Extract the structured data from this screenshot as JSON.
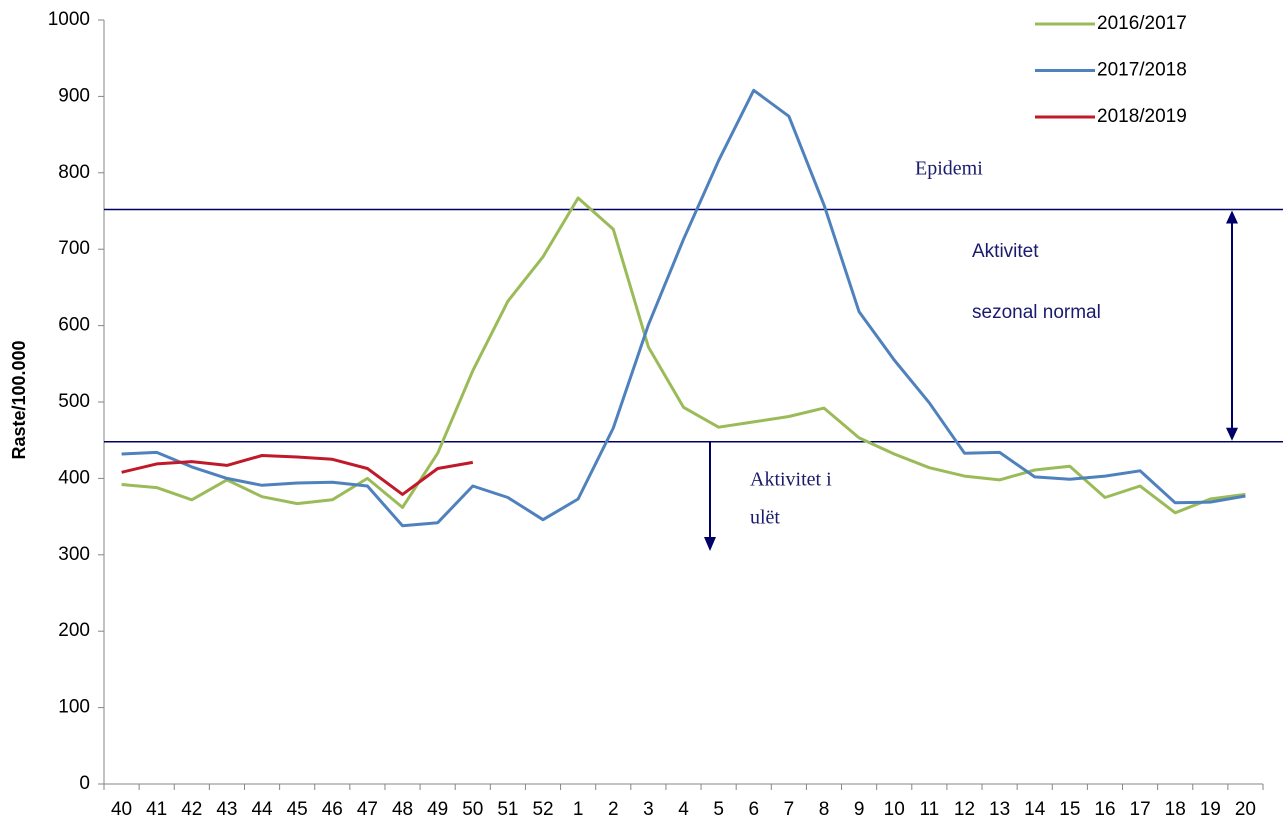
{
  "chart_data": {
    "type": "line",
    "y_label": "Raste/100.000",
    "categories": [
      "40",
      "41",
      "42",
      "43",
      "44",
      "45",
      "46",
      "47",
      "48",
      "49",
      "50",
      "51",
      "52",
      "1",
      "2",
      "3",
      "4",
      "5",
      "6",
      "7",
      "8",
      "9",
      "10",
      "11",
      "12",
      "13",
      "14",
      "15",
      "16",
      "17",
      "18",
      "19",
      "20"
    ],
    "series": [
      {
        "name": "2016/2017",
        "color": "#9bbb59",
        "values": [
          392,
          388,
          372,
          398,
          376,
          367,
          372,
          400,
          362,
          433,
          541,
          632,
          690,
          767,
          726,
          572,
          493,
          467,
          474,
          481,
          492,
          453,
          432,
          414,
          403,
          398,
          411,
          416,
          375,
          390,
          355,
          373,
          379
        ]
      },
      {
        "name": "2017/2018",
        "color": "#4f81bd",
        "values": [
          432,
          434,
          415,
          400,
          391,
          394,
          395,
          390,
          338,
          342,
          390,
          375,
          346,
          373,
          466,
          601,
          713,
          816,
          908,
          874,
          758,
          618,
          555,
          499,
          433,
          434,
          402,
          399,
          403,
          410,
          368,
          369,
          377
        ]
      },
      {
        "name": "2018/2019",
        "color": "#c0192a",
        "values": [
          408,
          419,
          422,
          417,
          430,
          428,
          425,
          413,
          379,
          413,
          421,
          null,
          null,
          null,
          null,
          null,
          null,
          null,
          null,
          null,
          null,
          null,
          null,
          null,
          null,
          null,
          null,
          null,
          null,
          null,
          null,
          null,
          null
        ]
      }
    ],
    "ylim": [
      0,
      1000
    ],
    "yticks": [
      0,
      100,
      200,
      300,
      400,
      500,
      600,
      700,
      800,
      900,
      1000
    ],
    "reference_lines": [
      752,
      448
    ],
    "reference_color": "#000066",
    "annotations": [
      {
        "lines": [
          "Epidemi"
        ]
      },
      {
        "lines": [
          "Aktivitet",
          "sezonal normal"
        ]
      },
      {
        "lines": [
          "Aktivitet i",
          "ulët"
        ]
      }
    ],
    "legend": "top-right",
    "grid": false
  }
}
